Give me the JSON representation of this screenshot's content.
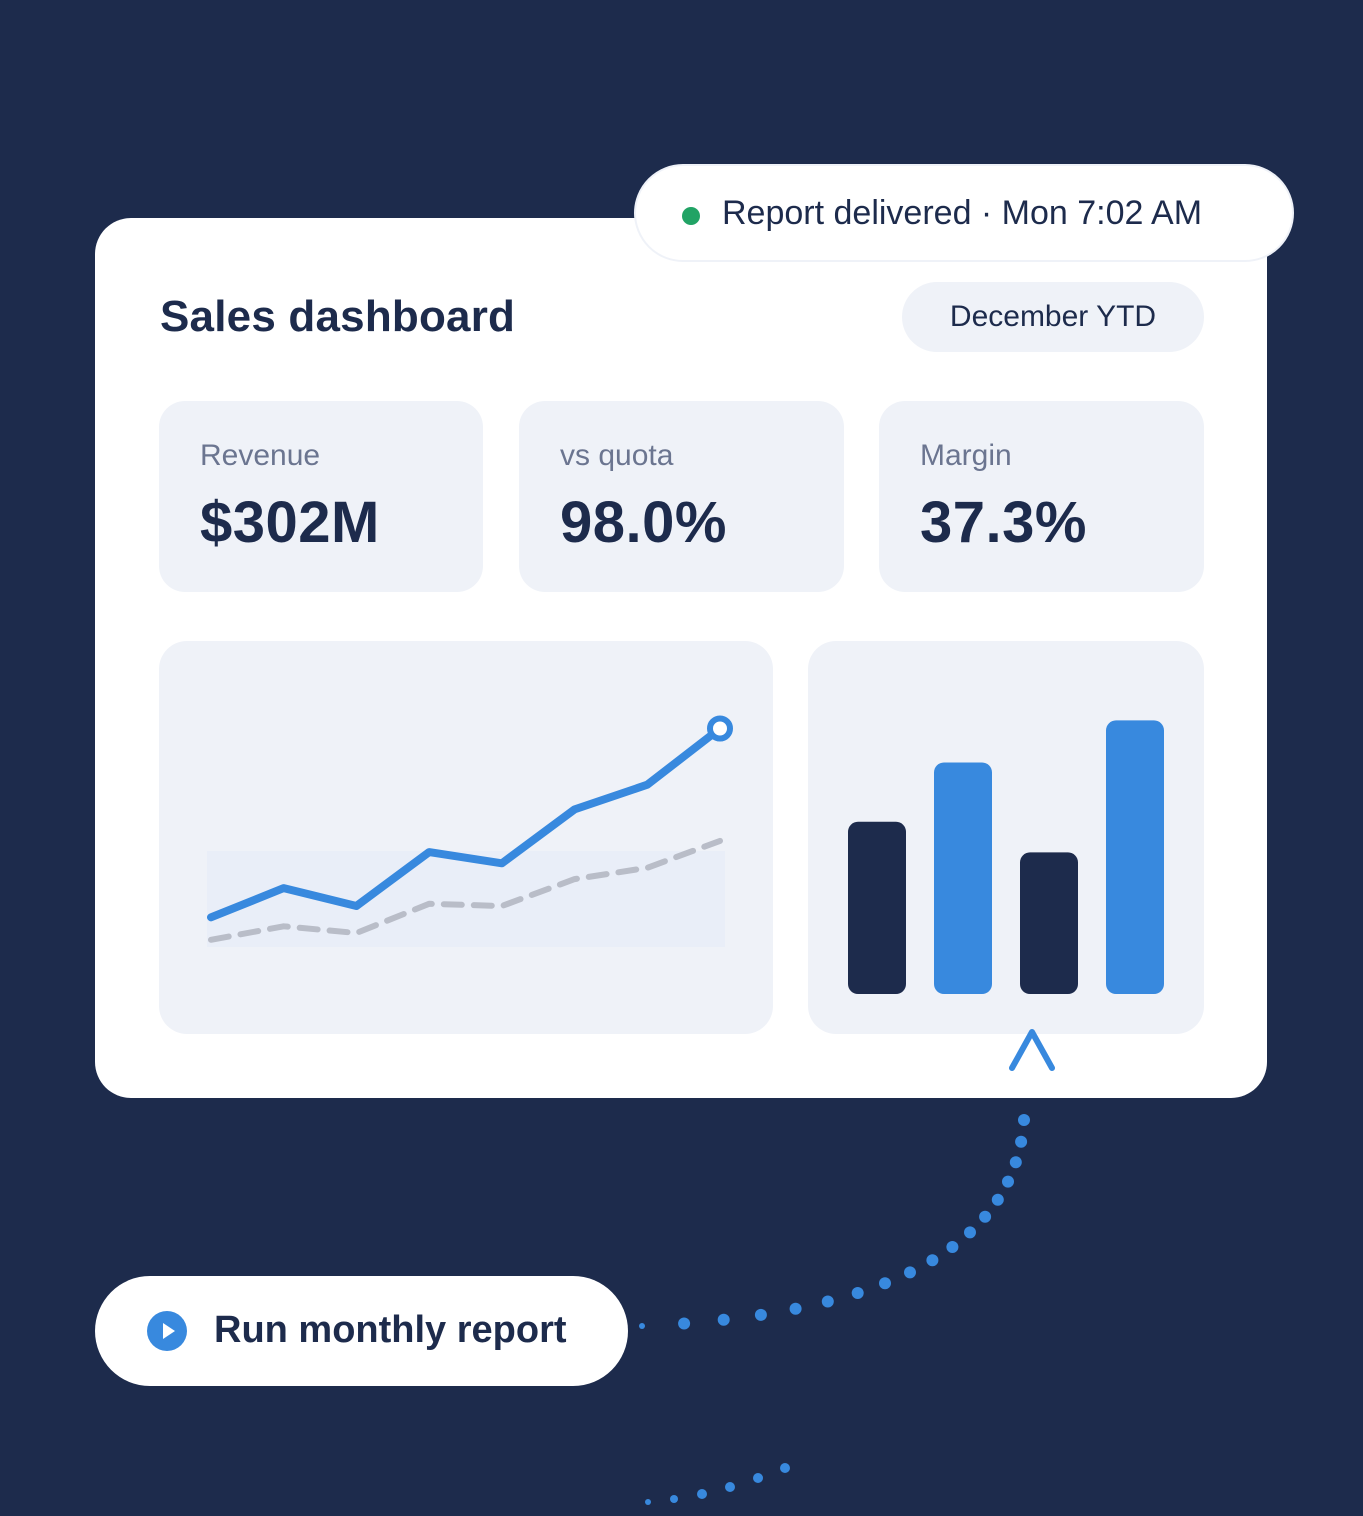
{
  "colors": {
    "background": "#1d2b4c",
    "card": "#ffffff",
    "tile": "#eff2f8",
    "text": "#1d2b4c",
    "muted": "#6b7590",
    "accent_blue": "#3889de",
    "navy_bar": "#1d2b4c",
    "dash_gray": "#b9bdc8",
    "status_green": "#21a365"
  },
  "status": {
    "text": "Report delivered · Mon 7:02 AM",
    "dot_color": "#21a365"
  },
  "dashboard": {
    "title": "Sales dashboard",
    "period": "December YTD",
    "kpis": [
      {
        "label": "Revenue",
        "value": "$302M"
      },
      {
        "label": "vs quota",
        "value": "98.0%"
      },
      {
        "label": "Margin",
        "value": "37.3%"
      }
    ]
  },
  "run_button": {
    "label": "Run monthly report",
    "icon": "play-icon"
  },
  "chart_data": [
    {
      "type": "line",
      "x": [
        1,
        2,
        3,
        4,
        5,
        6,
        7,
        8
      ],
      "series": [
        {
          "values": [
            1.0,
            2.3,
            1.5,
            3.9,
            3.4,
            5.8,
            6.9,
            9.4
          ],
          "style": "solid",
          "color": "#3889de",
          "end_marker": true
        },
        {
          "values": [
            0.0,
            0.6,
            0.3,
            1.6,
            1.5,
            2.7,
            3.2,
            4.4
          ],
          "style": "dashed",
          "color": "#b9bdc8"
        }
      ],
      "ylim": [
        -0.5,
        10
      ],
      "grid": false
    },
    {
      "type": "bar",
      "categories": [
        "",
        "",
        "",
        ""
      ],
      "values": [
        180,
        242,
        148,
        286
      ],
      "colors": [
        "#1d2b4c",
        "#3889de",
        "#1d2b4c",
        "#3889de"
      ],
      "ylim": [
        0,
        300
      ],
      "grid": false
    }
  ]
}
